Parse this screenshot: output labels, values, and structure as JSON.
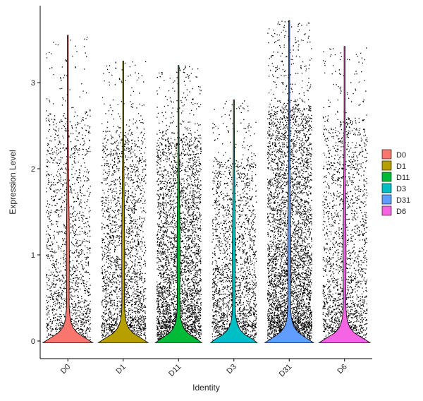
{
  "chart_data": {
    "type": "violin",
    "title": "",
    "xlabel": "Identity",
    "ylabel": "Expression Level",
    "ylim": [
      -0.2,
      3.8
    ],
    "yticks": [
      0,
      1,
      2,
      3
    ],
    "grid": false,
    "legend_position": "right",
    "categories": [
      "D0",
      "D1",
      "D11",
      "D3",
      "D31",
      "D6"
    ],
    "series": [
      {
        "name": "D0",
        "color": "#F8766D",
        "max": 3.55,
        "violin_width_at_zero": 0.45,
        "points": 1600
      },
      {
        "name": "D1",
        "color": "#B79F00",
        "max": 3.25,
        "violin_width_at_zero": 0.45,
        "points": 2200
      },
      {
        "name": "D11",
        "color": "#00BA38",
        "max": 3.2,
        "violin_width_at_zero": 0.42,
        "points": 3400
      },
      {
        "name": "D3",
        "color": "#00BFC4",
        "max": 2.8,
        "violin_width_at_zero": 0.42,
        "points": 1900
      },
      {
        "name": "D31",
        "color": "#619CFF",
        "max": 3.72,
        "violin_width_at_zero": 0.44,
        "points": 4200
      },
      {
        "name": "D6",
        "color": "#F564E3",
        "max": 3.42,
        "violin_width_at_zero": 0.46,
        "points": 1900
      }
    ]
  }
}
